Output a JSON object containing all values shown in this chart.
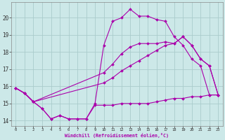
{
  "background_color": "#cce8e8",
  "grid_color": "#aacccc",
  "line_color": "#aa00aa",
  "x_label": "Windchill (Refroidissement éolien,°C)",
  "x_ticks": [
    0,
    1,
    2,
    3,
    4,
    5,
    6,
    7,
    8,
    9,
    10,
    11,
    12,
    13,
    14,
    15,
    16,
    17,
    18,
    19,
    20,
    21,
    22,
    23
  ],
  "y_ticks": [
    14,
    15,
    16,
    17,
    18,
    19,
    20
  ],
  "ylim": [
    13.7,
    20.9
  ],
  "xlim": [
    -0.5,
    23.5
  ],
  "line1_x": [
    0,
    1,
    2,
    3,
    4,
    5,
    6,
    7,
    8,
    9,
    10,
    11,
    12,
    13,
    14,
    15,
    16,
    17,
    18,
    19,
    20,
    21,
    22,
    23
  ],
  "line1_y": [
    15.9,
    15.6,
    15.1,
    14.7,
    14.1,
    14.3,
    14.1,
    14.1,
    14.1,
    14.9,
    14.9,
    14.9,
    15.0,
    15.0,
    15.0,
    15.0,
    15.1,
    15.2,
    15.3,
    15.3,
    15.4,
    15.4,
    15.5,
    15.5
  ],
  "line2_x": [
    0,
    1,
    2,
    10,
    11,
    12,
    13,
    14,
    15,
    16,
    17,
    18,
    19,
    20,
    21,
    22,
    23
  ],
  "line2_y": [
    15.9,
    15.6,
    15.1,
    16.2,
    16.5,
    16.9,
    17.2,
    17.5,
    17.8,
    18.1,
    18.4,
    18.5,
    18.9,
    18.4,
    17.6,
    17.2,
    15.5
  ],
  "line3_x": [
    0,
    1,
    2,
    10,
    11,
    12,
    13,
    14,
    15,
    16,
    17,
    18,
    19,
    20,
    21,
    22,
    23
  ],
  "line3_y": [
    15.9,
    15.6,
    15.1,
    16.8,
    17.3,
    17.9,
    18.3,
    18.5,
    18.5,
    18.5,
    18.6,
    18.5,
    18.9,
    18.4,
    17.6,
    17.2,
    15.5
  ],
  "line4_x": [
    0,
    1,
    2,
    3,
    4,
    5,
    6,
    7,
    8,
    9,
    10,
    11,
    12,
    13,
    14,
    15,
    16,
    17,
    18,
    19,
    20,
    21,
    22,
    23
  ],
  "line4_y": [
    15.9,
    15.6,
    15.1,
    14.7,
    14.1,
    14.3,
    14.1,
    14.1,
    14.1,
    15.0,
    18.4,
    19.8,
    20.0,
    20.5,
    20.1,
    20.1,
    19.9,
    19.8,
    18.9,
    18.4,
    17.6,
    17.2,
    15.5,
    15.5
  ]
}
